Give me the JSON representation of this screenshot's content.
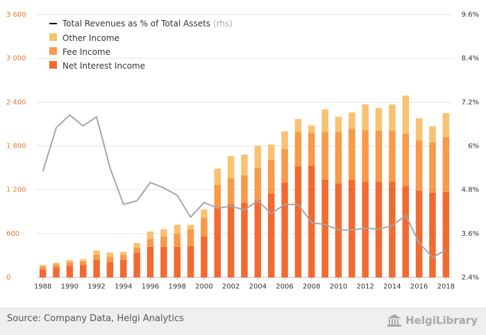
{
  "chart_data": {
    "type": "bar",
    "stacked": true,
    "years": [
      1988,
      1989,
      1990,
      1991,
      1992,
      1993,
      1994,
      1995,
      1996,
      1997,
      1998,
      1999,
      2000,
      2001,
      2002,
      2003,
      2004,
      2005,
      2006,
      2007,
      2008,
      2009,
      2010,
      2011,
      2012,
      2013,
      2014,
      2015,
      2016,
      2017,
      2018
    ],
    "x_tick_labels": [
      "1988",
      "1990",
      "1992",
      "1994",
      "1996",
      "1998",
      "2000",
      "2002",
      "2004",
      "2006",
      "2008",
      "2010",
      "2012",
      "2014",
      "2016",
      "2018"
    ],
    "series": [
      {
        "name": "Net Interest Income",
        "color": "#f26a30",
        "values": [
          110,
          140,
          160,
          170,
          240,
          210,
          240,
          340,
          420,
          420,
          420,
          430,
          560,
          950,
          1000,
          1020,
          1060,
          1150,
          1300,
          1520,
          1530,
          1340,
          1290,
          1340,
          1310,
          1310,
          1310,
          1250,
          1190,
          1160,
          1170
        ]
      },
      {
        "name": "Fee Income",
        "color": "#f89a48",
        "values": [
          40,
          40,
          50,
          50,
          70,
          70,
          70,
          70,
          110,
          140,
          180,
          230,
          260,
          320,
          360,
          380,
          440,
          460,
          460,
          470,
          450,
          650,
          700,
          700,
          710,
          700,
          700,
          720,
          690,
          690,
          750
        ]
      },
      {
        "name": "Other Income",
        "color": "#f9c270",
        "values": [
          20,
          20,
          30,
          30,
          60,
          60,
          40,
          60,
          100,
          100,
          120,
          60,
          110,
          220,
          300,
          280,
          300,
          210,
          240,
          180,
          100,
          310,
          210,
          220,
          350,
          310,
          360,
          520,
          300,
          220,
          330
        ]
      }
    ],
    "line_series": {
      "name": "Total Revenues as % of Total Assets",
      "suffix": "(rhs)",
      "color": "#a6a6a6",
      "axis": "right",
      "values": [
        5.3,
        6.5,
        6.85,
        6.55,
        6.8,
        5.4,
        4.4,
        4.5,
        5.0,
        4.85,
        4.65,
        4.05,
        4.45,
        4.3,
        4.35,
        4.25,
        4.5,
        4.15,
        4.4,
        4.4,
        3.9,
        3.85,
        3.7,
        3.7,
        3.75,
        3.72,
        3.82,
        4.1,
        3.35,
        2.95,
        3.15
      ]
    },
    "y_left": {
      "min": 0,
      "max": 3600,
      "ticks": [
        "0",
        "600",
        "1 200",
        "1 800",
        "2 400",
        "3 000",
        "3 600"
      ],
      "tick_values": [
        0,
        600,
        1200,
        1800,
        2400,
        3000,
        3600
      ]
    },
    "y_right": {
      "min": 2.4,
      "max": 9.6,
      "ticks": [
        "2.4%",
        "3.6%",
        "4.8%",
        "6%",
        "7.2%",
        "8.4%",
        "9.6%"
      ],
      "tick_values": [
        2.4,
        3.6,
        4.8,
        6.0,
        7.2,
        8.4,
        9.6
      ]
    },
    "grid": true,
    "legend_position": "top-left",
    "legend": [
      {
        "label": "Total Revenues as % of Total Assets",
        "note": "(rhs)",
        "kind": "line",
        "color": "#000000"
      },
      {
        "label": "Other Income",
        "kind": "box",
        "color": "#f9c270"
      },
      {
        "label": "Fee Income",
        "kind": "box",
        "color": "#f89a48"
      },
      {
        "label": "Net Interest Income",
        "kind": "box",
        "color": "#f26a30"
      }
    ]
  },
  "footer": {
    "source": "Source: Company Data, Helgi Analytics",
    "logo_text": "HelgiLibrary"
  }
}
